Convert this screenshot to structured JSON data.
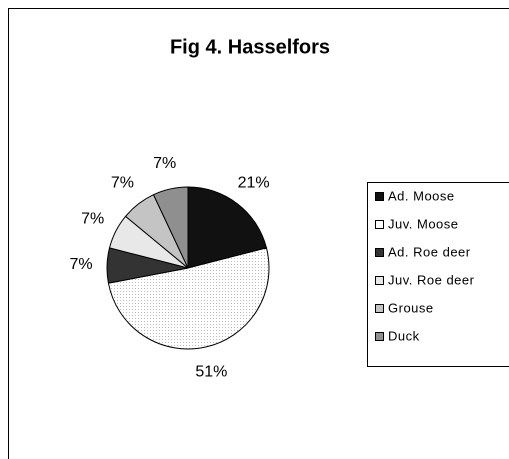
{
  "chart_data": {
    "type": "pie",
    "title": "Fig 4. Hasselfors",
    "categories": [
      "Ad. Moose",
      "Juv. Moose",
      "Ad. Roe deer",
      "Juv. Roe deer",
      "Grouse",
      "Duck"
    ],
    "values": [
      21,
      51,
      7,
      7,
      7,
      7
    ],
    "value_labels": [
      "21%",
      "51%",
      "7%",
      "7%",
      "7%",
      "7%"
    ],
    "colors": [
      "#111111",
      "#f6f6f6",
      "#333333",
      "#e8e8e8",
      "#c4c4c4",
      "#8f8f8f"
    ]
  }
}
